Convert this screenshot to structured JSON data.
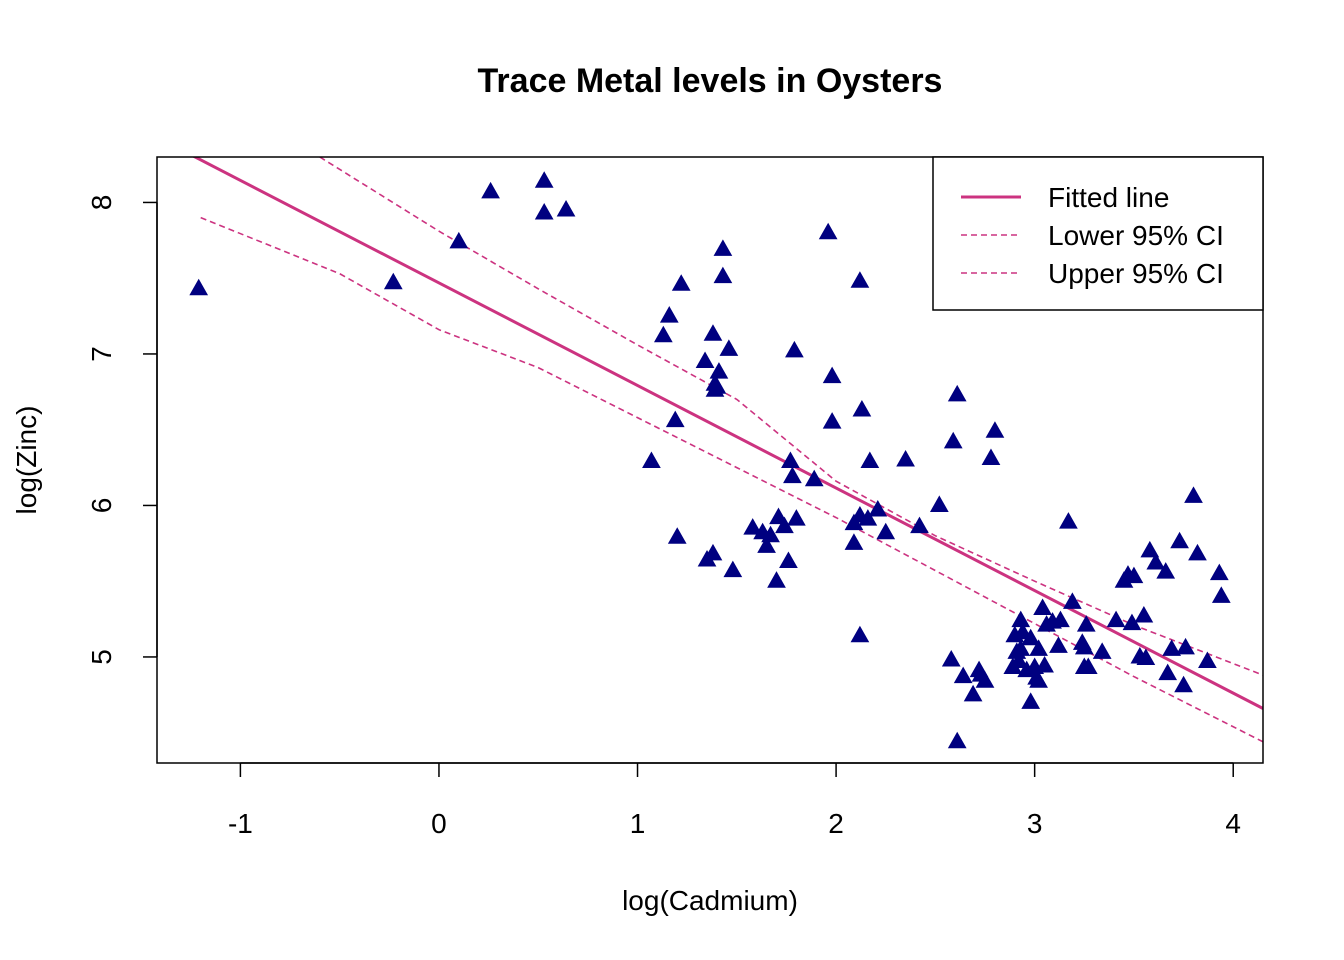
{
  "chart_data": {
    "type": "scatter",
    "title": "Trace Metal levels in Oysters",
    "xlabel": "log(Cadmium)",
    "ylabel": "log(Zinc)",
    "xlim": [
      -1.42,
      4.15
    ],
    "ylim": [
      4.3,
      8.3
    ],
    "x_ticks": [
      -1,
      0,
      1,
      2,
      3,
      4
    ],
    "y_ticks": [
      5,
      6,
      7,
      8
    ],
    "grid": false,
    "legend_position": "top-right",
    "colors": {
      "points": "#000080",
      "fitted": "#CC3380",
      "ci": "#CC3380"
    },
    "series": [
      {
        "kind": "points",
        "marker": "filled-triangle",
        "x": [
          -1.21,
          -0.23,
          0.1,
          0.26,
          0.53,
          0.53,
          0.64,
          1.07,
          1.13,
          1.16,
          1.19,
          1.2,
          1.22,
          1.34,
          1.35,
          1.38,
          1.38,
          1.39,
          1.39,
          1.4,
          1.41,
          1.43,
          1.43,
          1.46,
          1.48,
          1.58,
          1.63,
          1.65,
          1.67,
          1.7,
          1.71,
          1.74,
          1.76,
          1.77,
          1.78,
          1.8,
          1.79,
          1.89,
          1.96,
          1.98,
          1.98,
          2.09,
          2.09,
          2.12,
          2.12,
          2.12,
          2.13,
          2.16,
          2.17,
          2.21,
          2.25,
          2.35,
          2.42,
          2.52,
          2.58,
          2.59,
          2.61,
          2.61,
          2.64,
          2.69,
          2.72,
          2.73,
          2.75,
          2.78,
          2.8,
          2.89,
          2.9,
          2.91,
          2.92,
          2.93,
          2.93,
          2.94,
          2.96,
          2.98,
          2.98,
          3.0,
          3.01,
          3.02,
          3.02,
          3.04,
          3.05,
          3.06,
          3.09,
          3.12,
          3.13,
          3.17,
          3.19,
          3.24,
          3.25,
          3.25,
          3.26,
          3.27,
          3.34,
          3.41,
          3.45,
          3.47,
          3.49,
          3.5,
          3.53,
          3.55,
          3.56,
          3.58,
          3.61,
          3.66,
          3.67,
          3.69,
          3.73,
          3.75,
          3.76,
          3.8,
          3.82,
          3.87,
          3.93,
          3.94
        ],
        "y": [
          7.43,
          7.47,
          7.74,
          8.07,
          8.14,
          7.93,
          7.95,
          6.29,
          7.12,
          7.25,
          6.56,
          5.79,
          7.46,
          6.95,
          5.64,
          5.68,
          7.13,
          6.8,
          6.76,
          6.78,
          6.88,
          7.69,
          7.51,
          7.03,
          5.57,
          5.85,
          5.82,
          5.73,
          5.8,
          5.5,
          5.92,
          5.86,
          5.63,
          6.29,
          6.19,
          5.91,
          7.02,
          6.17,
          7.8,
          6.85,
          6.55,
          5.88,
          5.75,
          5.93,
          5.14,
          7.48,
          6.63,
          5.91,
          6.29,
          5.97,
          5.82,
          6.3,
          5.86,
          6.0,
          4.98,
          6.42,
          6.73,
          4.44,
          4.87,
          4.75,
          4.91,
          4.88,
          4.84,
          6.31,
          6.49,
          4.93,
          5.14,
          5.03,
          4.97,
          5.24,
          5.05,
          5.16,
          4.91,
          4.7,
          5.12,
          4.93,
          4.86,
          4.84,
          5.05,
          5.32,
          4.94,
          5.21,
          5.23,
          5.07,
          5.24,
          5.89,
          5.36,
          5.09,
          5.06,
          4.93,
          5.21,
          4.93,
          5.03,
          5.24,
          5.5,
          5.54,
          5.22,
          5.53,
          5.0,
          5.27,
          4.99,
          5.7,
          5.62,
          5.56,
          4.89,
          5.05,
          5.76,
          4.81,
          5.06,
          6.06,
          5.68,
          4.97,
          5.55,
          5.4
        ]
      },
      {
        "kind": "line",
        "name": "Fitted line",
        "style": "solid",
        "x": [
          -1.42,
          4.15
        ],
        "y": [
          8.43,
          4.66
        ]
      },
      {
        "kind": "line",
        "name": "Lower 95% CI",
        "style": "dashed",
        "x": [
          -1.2,
          -0.5,
          0.0,
          0.5,
          1.0,
          1.5,
          2.0,
          2.5,
          3.0,
          3.5,
          4.15
        ],
        "y": [
          7.9,
          7.53,
          7.16,
          6.91,
          6.58,
          6.25,
          5.92,
          5.57,
          5.22,
          4.87,
          4.44
        ]
      },
      {
        "kind": "line",
        "name": "Upper 95% CI",
        "style": "dashed",
        "x": [
          -0.6,
          0.0,
          0.5,
          1.0,
          1.5,
          2.0,
          2.5,
          3.0,
          3.5,
          4.15
        ],
        "y": [
          8.3,
          7.81,
          7.43,
          7.06,
          6.7,
          6.16,
          5.8,
          5.5,
          5.21,
          4.88
        ]
      }
    ],
    "legend": {
      "entries": [
        {
          "label": "Fitted line",
          "style": "solid"
        },
        {
          "label": "Lower 95% CI",
          "style": "dashed"
        },
        {
          "label": "Upper 95% CI",
          "style": "dashed"
        }
      ]
    }
  }
}
